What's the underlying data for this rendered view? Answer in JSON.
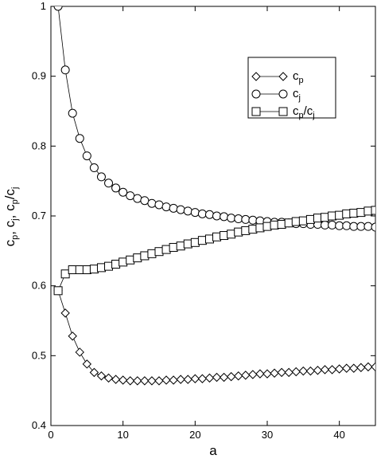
{
  "chart_data": {
    "type": "line",
    "xlabel": "a",
    "ylabel": "c_p, c_j, c_p/c_j",
    "xlim": [
      0,
      45
    ],
    "ylim": [
      0.4,
      1.0
    ],
    "xticks": [
      0,
      10,
      20,
      30,
      40
    ],
    "yticks": [
      0.4,
      0.5,
      0.6,
      0.7,
      0.8,
      0.9,
      1.0
    ],
    "ytick_labels": [
      "0.4",
      "0.5",
      "0.6",
      "0.7",
      "0.8",
      "0.9",
      "1"
    ],
    "grid": false,
    "legend_position": "top-right",
    "series": [
      {
        "name": "c_p",
        "marker": "diamond",
        "x": [
          1,
          2,
          3,
          4,
          5,
          6,
          7,
          8,
          9,
          10,
          11,
          12,
          13,
          14,
          15,
          16,
          17,
          18,
          19,
          20,
          21,
          22,
          23,
          24,
          25,
          26,
          27,
          28,
          29,
          30,
          31,
          32,
          33,
          34,
          35,
          36,
          37,
          38,
          39,
          40,
          41,
          42,
          43,
          44,
          45
        ],
        "y": [
          0.593,
          0.561,
          0.528,
          0.505,
          0.488,
          0.476,
          0.471,
          0.468,
          0.466,
          0.465,
          0.464,
          0.464,
          0.464,
          0.464,
          0.464,
          0.465,
          0.465,
          0.466,
          0.466,
          0.467,
          0.467,
          0.468,
          0.469,
          0.469,
          0.47,
          0.471,
          0.472,
          0.473,
          0.474,
          0.474,
          0.475,
          0.476,
          0.476,
          0.477,
          0.478,
          0.478,
          0.479,
          0.48,
          0.48,
          0.481,
          0.482,
          0.482,
          0.483,
          0.484,
          0.484
        ]
      },
      {
        "name": "c_j",
        "marker": "circle",
        "x": [
          1,
          2,
          3,
          4,
          5,
          6,
          7,
          8,
          9,
          10,
          11,
          12,
          13,
          14,
          15,
          16,
          17,
          18,
          19,
          20,
          21,
          22,
          23,
          24,
          25,
          26,
          27,
          28,
          29,
          30,
          31,
          32,
          33,
          34,
          35,
          36,
          37,
          38,
          39,
          40,
          41,
          42,
          43,
          44,
          45
        ],
        "y": [
          1.0,
          0.909,
          0.847,
          0.811,
          0.786,
          0.769,
          0.756,
          0.747,
          0.74,
          0.734,
          0.729,
          0.725,
          0.722,
          0.718,
          0.716,
          0.713,
          0.711,
          0.709,
          0.707,
          0.705,
          0.703,
          0.702,
          0.7,
          0.699,
          0.697,
          0.696,
          0.695,
          0.694,
          0.693,
          0.692,
          0.691,
          0.691,
          0.69,
          0.689,
          0.689,
          0.688,
          0.688,
          0.687,
          0.687,
          0.686,
          0.686,
          0.685,
          0.685,
          0.685,
          0.684
        ]
      },
      {
        "name": "c_p/c_j",
        "marker": "square",
        "x": [
          1,
          2,
          3,
          4,
          5,
          6,
          7,
          8,
          9,
          10,
          11,
          12,
          13,
          14,
          15,
          16,
          17,
          18,
          19,
          20,
          21,
          22,
          23,
          24,
          25,
          26,
          27,
          28,
          29,
          30,
          31,
          32,
          33,
          34,
          35,
          36,
          37,
          38,
          39,
          40,
          41,
          42,
          43,
          44,
          45
        ],
        "y": [
          0.593,
          0.617,
          0.623,
          0.623,
          0.623,
          0.624,
          0.626,
          0.628,
          0.631,
          0.634,
          0.637,
          0.64,
          0.643,
          0.646,
          0.649,
          0.652,
          0.655,
          0.657,
          0.66,
          0.662,
          0.665,
          0.667,
          0.67,
          0.672,
          0.674,
          0.677,
          0.679,
          0.681,
          0.683,
          0.685,
          0.687,
          0.688,
          0.69,
          0.692,
          0.693,
          0.695,
          0.697,
          0.698,
          0.7,
          0.701,
          0.703,
          0.704,
          0.705,
          0.707,
          0.708
        ]
      }
    ]
  }
}
